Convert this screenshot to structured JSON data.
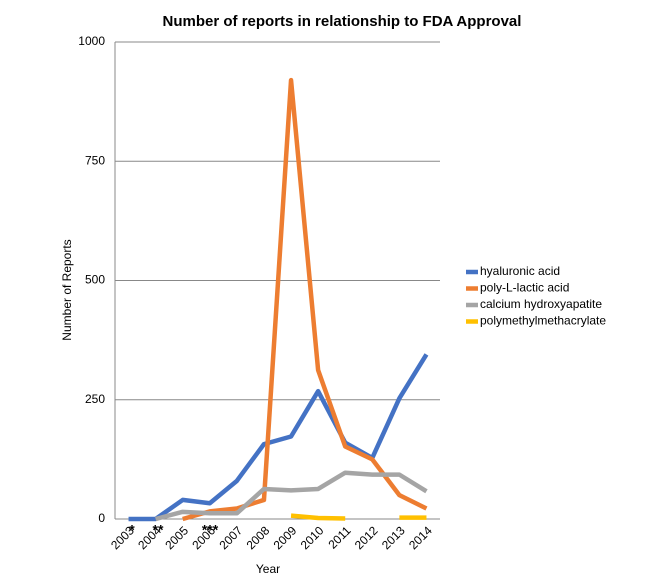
{
  "chart_data": {
    "type": "line",
    "title": "Number of reports in relationship to FDA Approval",
    "x_label": "Year",
    "y_label": "Number of Reports",
    "categories": [
      "2003",
      "2004",
      "2005",
      "2006",
      "2007",
      "2008",
      "2009",
      "2010",
      "2011",
      "2012",
      "2013",
      "2014"
    ],
    "series": [
      {
        "name": "hyaluronic acid",
        "color": "#4472c4",
        "values": [
          0,
          0,
          40,
          33,
          80,
          157,
          173,
          268,
          160,
          128,
          253,
          345
        ]
      },
      {
        "name": "poly-L-lactic acid",
        "color": "#ed7d31",
        "values": [
          null,
          null,
          0,
          16,
          22,
          40,
          920,
          312,
          152,
          125,
          50,
          22
        ]
      },
      {
        "name": "calcium hydroxyapatite",
        "color": "#a5a5a5",
        "values": [
          null,
          0,
          15,
          12,
          12,
          63,
          60,
          63,
          97,
          93,
          93,
          58
        ]
      },
      {
        "name": "polymethylmethacrylate",
        "color": "#ffc000",
        "values": [
          null,
          null,
          null,
          null,
          null,
          null,
          7,
          2,
          1,
          null,
          3,
          3
        ]
      }
    ],
    "annotations": [
      "*",
      "**",
      "***"
    ],
    "ylim": [
      0,
      1000
    ],
    "yticks": [
      0,
      250,
      500,
      750,
      1000
    ],
    "grid": true,
    "legend": "right"
  }
}
